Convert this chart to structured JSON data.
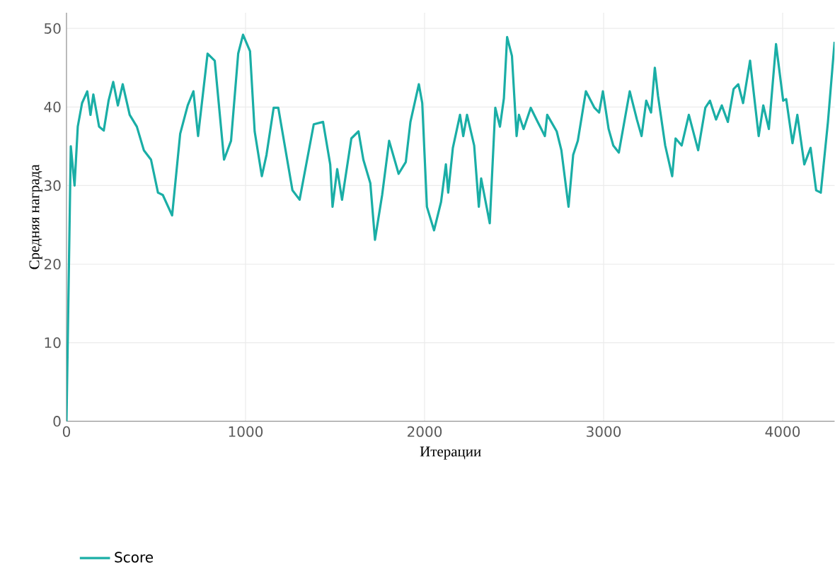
{
  "chart_data": {
    "type": "line",
    "xlabel": "Итерации",
    "ylabel": "Средняя награда",
    "xlim": [
      0,
      4290
    ],
    "ylim": [
      0,
      52
    ],
    "xticks": [
      0,
      1000,
      2000,
      3000,
      4000
    ],
    "yticks": [
      0,
      10,
      20,
      30,
      40,
      50
    ],
    "grid": true,
    "legend": "bottom left",
    "line_style": "solid",
    "marker": "none",
    "series": [
      {
        "name": "Score",
        "color": "#1aaea6",
        "x": [
          0,
          24,
          45,
          63,
          87,
          116,
          134,
          150,
          182,
          208,
          235,
          261,
          287,
          314,
          353,
          393,
          432,
          472,
          511,
          538,
          590,
          635,
          677,
          709,
          735,
          788,
          828,
          880,
          919,
          959,
          986,
          1025,
          1051,
          1091,
          1117,
          1157,
          1183,
          1262,
          1302,
          1381,
          1433,
          1473,
          1486,
          1512,
          1539,
          1591,
          1631,
          1658,
          1697,
          1723,
          1763,
          1802,
          1855,
          1895,
          1921,
          1968,
          1987,
          2013,
          2053,
          2092,
          2119,
          2132,
          2158,
          2198,
          2216,
          2237,
          2277,
          2303,
          2316,
          2364,
          2395,
          2421,
          2443,
          2461,
          2488,
          2514,
          2527,
          2553,
          2593,
          2632,
          2672,
          2685,
          2738,
          2764,
          2804,
          2830,
          2856,
          2901,
          2949,
          2975,
          2996,
          3028,
          3054,
          3085,
          3146,
          3186,
          3212,
          3238,
          3265,
          3286,
          3304,
          3344,
          3383,
          3402,
          3436,
          3476,
          3528,
          3568,
          3594,
          3628,
          3660,
          3694,
          3726,
          3752,
          3779,
          3818,
          3866,
          3892,
          3923,
          3963,
          4003,
          4020,
          4055,
          4082,
          4121,
          4156,
          4187,
          4213,
          4253,
          4290
        ],
        "values": [
          0,
          35,
          30,
          37.5,
          40.5,
          42,
          39,
          41.6,
          37.5,
          37,
          40.8,
          43.2,
          40.2,
          42.9,
          39,
          37.5,
          34.5,
          33.3,
          29.1,
          28.8,
          26.2,
          36.6,
          40.2,
          42,
          36.3,
          46.8,
          45.9,
          33.3,
          35.7,
          46.8,
          49.2,
          47.1,
          36.9,
          31.2,
          33.9,
          39.9,
          39.9,
          29.4,
          28.2,
          37.8,
          38.1,
          32.7,
          27.3,
          32.1,
          28.2,
          36,
          36.9,
          33.3,
          30.3,
          23.1,
          28.8,
          35.7,
          31.5,
          33,
          38.1,
          42.9,
          40.5,
          27.3,
          24.3,
          27.9,
          32.7,
          29.1,
          34.8,
          39,
          36.3,
          39,
          35.1,
          27.3,
          30.9,
          25.2,
          39.9,
          37.5,
          41.1,
          48.9,
          46.5,
          36.3,
          39,
          37.2,
          39.9,
          38.1,
          36.3,
          39,
          36.9,
          34.5,
          27.3,
          33.9,
          35.7,
          42,
          39.9,
          39.3,
          42,
          37.2,
          35.1,
          34.2,
          42,
          38.4,
          36.3,
          40.8,
          39.3,
          45,
          41.4,
          35.1,
          31.2,
          36,
          35.1,
          39,
          34.5,
          39.9,
          40.8,
          38.4,
          40.2,
          38.1,
          42.3,
          42.9,
          40.5,
          45.9,
          36.3,
          40.2,
          37.2,
          48,
          40.8,
          41,
          35.4,
          39,
          32.7,
          34.8,
          29.4,
          29.1,
          38.1,
          48.3
        ]
      }
    ]
  }
}
